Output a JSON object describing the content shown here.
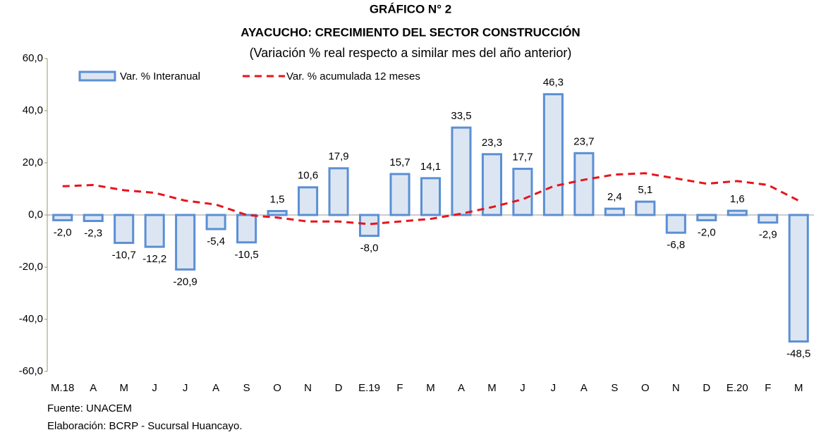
{
  "chart_data": {
    "type": "bar",
    "title": "GRÁFICO N° 2",
    "subtitle": "AYACUCHO: CRECIMIENTO DEL SECTOR CONSTRUCCIÓN",
    "note": "(Variación % real respecto a similar mes del año anterior)",
    "categories": [
      "M.18",
      "A",
      "M",
      "J",
      "J",
      "A",
      "S",
      "O",
      "N",
      "D",
      "E.19",
      "F",
      "M",
      "A",
      "M",
      "J",
      "J",
      "A",
      "S",
      "O",
      "N",
      "D",
      "E.20",
      "F",
      "M"
    ],
    "series": [
      {
        "name": "Var. % Interanual",
        "type": "bar",
        "color": "#dce6f2",
        "stroke": "#5b8fd4",
        "values": [
          -2.0,
          -2.3,
          -10.7,
          -12.2,
          -20.9,
          -5.4,
          -10.5,
          1.5,
          10.6,
          17.9,
          -8.0,
          15.7,
          14.1,
          33.5,
          23.3,
          17.7,
          46.3,
          23.7,
          2.4,
          5.1,
          -6.8,
          -2.0,
          1.6,
          -2.9,
          -48.5
        ],
        "value_labels": [
          "-2,0",
          "-2,3",
          "-10,7",
          "-12,2",
          "-20,9",
          "-5,4",
          "-10,5",
          "1,5",
          "10,6",
          "17,9",
          "-8,0",
          "15,7",
          "14,1",
          "33,5",
          "23,3",
          "17,7",
          "46,3",
          "23,7",
          "2,4",
          "5,1",
          "-6,8",
          "-2,0",
          "1,6",
          "-2,9",
          "-48,5"
        ]
      },
      {
        "name": "Var. % acumulada 12 meses",
        "type": "line",
        "color": "#e8141c",
        "values": [
          11,
          11.5,
          9.5,
          8.5,
          5.5,
          4,
          0,
          -1,
          -2.5,
          -2.5,
          -3.5,
          -2.5,
          -1.5,
          0.5,
          3,
          6,
          11,
          13.5,
          15.5,
          16,
          14,
          12,
          13,
          11.5,
          5.5
        ]
      }
    ],
    "ylim": [
      -60,
      60
    ],
    "yticks": [
      {
        "value": -60,
        "label": "-60,0"
      },
      {
        "value": -40,
        "label": "-40,0"
      },
      {
        "value": -20,
        "label": "-20,0"
      },
      {
        "value": 0,
        "label": "0,0"
      },
      {
        "value": 20,
        "label": "20,0"
      },
      {
        "value": 40,
        "label": "40,0"
      },
      {
        "value": 60,
        "label": "60,0"
      }
    ],
    "source": "Fuente: UNACEM",
    "credit": "Elaboración: BCRP - Sucursal Huancayo."
  }
}
